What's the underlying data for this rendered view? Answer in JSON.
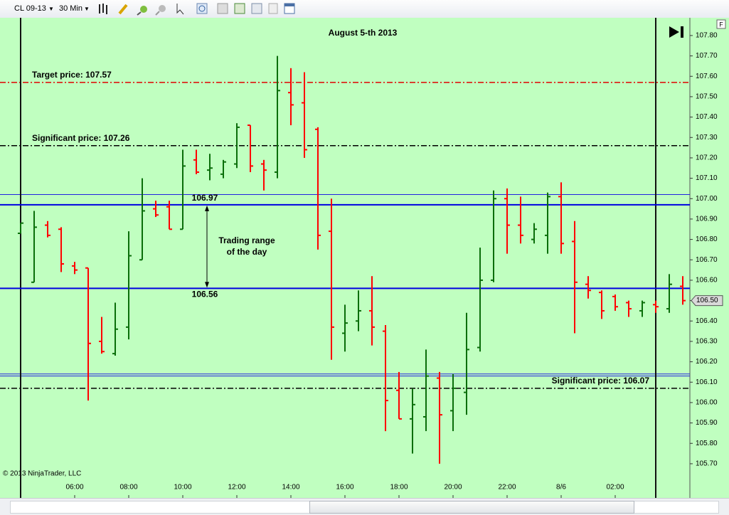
{
  "toolbar": {
    "instrument": "CL 09-13",
    "interval": "30 Min"
  },
  "chart_data": {
    "type": "ohlc",
    "title": "August 5-th 2013",
    "copyright": "© 2013 NinjaTrader, LLC",
    "panel_button": "F",
    "categories": [
      null,
      null,
      null,
      null,
      "06:00",
      null,
      null,
      null,
      "08:00",
      null,
      null,
      null,
      "10:00",
      null,
      null,
      null,
      "12:00",
      null,
      null,
      null,
      "14:00",
      null,
      null,
      null,
      "16:00",
      null,
      null,
      null,
      "18:00",
      null,
      null,
      null,
      "20:00",
      null,
      null,
      null,
      "22:00",
      null,
      null,
      null,
      "8/6",
      null,
      null,
      null,
      "02:00",
      null,
      null,
      null,
      null,
      null
    ],
    "open": [
      106.83,
      106.59,
      106.87,
      106.85,
      106.67,
      106.66,
      106.3,
      106.24,
      106.37,
      106.7,
      106.95,
      106.96,
      106.85,
      107.19,
      107.14,
      107.12,
      107.17,
      107.36,
      107.17,
      107.13,
      107.52,
      107.47,
      107.34,
      106.84,
      106.34,
      106.4,
      106.45,
      106.35,
      106.06,
      105.92,
      105.93,
      106.12,
      105.96,
      106.05,
      106.27,
      106.6,
      107.0,
      106.87,
      106.8,
      106.82,
      107.01,
      106.79,
      106.58,
      106.54,
      106.52,
      106.49,
      106.45,
      106.48,
      106.46,
      106.57
    ],
    "high": [
      106.88,
      106.94,
      106.89,
      106.86,
      106.69,
      106.66,
      106.42,
      106.49,
      106.84,
      107.1,
      106.99,
      106.99,
      107.24,
      107.24,
      107.22,
      107.19,
      107.37,
      107.36,
      107.19,
      107.7,
      107.64,
      107.62,
      107.35,
      107.0,
      106.48,
      106.55,
      106.62,
      106.38,
      106.15,
      106.07,
      106.26,
      106.15,
      106.14,
      106.44,
      106.76,
      107.04,
      107.05,
      107.01,
      106.88,
      107.03,
      107.08,
      106.89,
      106.62,
      106.55,
      106.53,
      106.5,
      106.5,
      106.5,
      106.63,
      106.62
    ],
    "low": [
      106.83,
      106.59,
      106.81,
      106.64,
      106.63,
      106.01,
      106.24,
      106.23,
      106.31,
      106.7,
      106.91,
      106.85,
      106.85,
      107.12,
      107.09,
      107.1,
      107.15,
      107.13,
      107.04,
      107.1,
      107.36,
      107.2,
      106.75,
      106.21,
      106.25,
      106.35,
      106.28,
      105.86,
      105.92,
      105.75,
      105.86,
      105.7,
      105.86,
      105.94,
      106.25,
      106.59,
      106.73,
      106.78,
      106.78,
      106.73,
      106.73,
      106.34,
      106.51,
      106.41,
      106.45,
      106.42,
      106.42,
      106.44,
      106.44,
      106.48
    ],
    "close": [
      106.88,
      106.86,
      106.82,
      106.68,
      106.65,
      106.29,
      106.25,
      106.36,
      106.72,
      106.94,
      106.92,
      106.85,
      107.16,
      107.13,
      107.15,
      107.18,
      107.35,
      107.16,
      107.14,
      107.53,
      107.46,
      107.24,
      106.82,
      106.37,
      106.39,
      106.45,
      106.37,
      106.01,
      105.92,
      105.99,
      106.13,
      105.94,
      106.07,
      106.26,
      106.6,
      107.0,
      106.87,
      106.82,
      106.85,
      107.01,
      106.78,
      106.59,
      106.55,
      106.45,
      106.47,
      106.46,
      106.49,
      106.47,
      106.58,
      106.5
    ],
    "up_color": "#0a6e0a",
    "down_color": "#ff0000",
    "session_breaks": [
      0,
      47
    ],
    "ylim": [
      105.63,
      107.88
    ],
    "yticks": [
      {
        "value": 105.7,
        "label": "105.70"
      },
      {
        "value": 105.8,
        "label": "105.80"
      },
      {
        "value": 105.9,
        "label": "105.90"
      },
      {
        "value": 106.0,
        "label": "106.00"
      },
      {
        "value": 106.1,
        "label": "106.10"
      },
      {
        "value": 106.2,
        "label": "106.20"
      },
      {
        "value": 106.3,
        "label": "106.30"
      },
      {
        "value": 106.4,
        "label": "106.40"
      },
      {
        "value": 106.5,
        "label": "106.50"
      },
      {
        "value": 106.6,
        "label": "106.60"
      },
      {
        "value": 106.7,
        "label": "106.70"
      },
      {
        "value": 106.8,
        "label": "106.80"
      },
      {
        "value": 106.9,
        "label": "106.90"
      },
      {
        "value": 107.0,
        "label": "107.00"
      },
      {
        "value": 107.1,
        "label": "107.10"
      },
      {
        "value": 107.2,
        "label": "107.20"
      },
      {
        "value": 107.3,
        "label": "107.30"
      },
      {
        "value": 107.4,
        "label": "107.40"
      },
      {
        "value": 107.5,
        "label": "107.50"
      },
      {
        "value": 107.6,
        "label": "107.60"
      },
      {
        "value": 107.7,
        "label": "107.70"
      },
      {
        "value": 107.8,
        "label": "107.80"
      }
    ],
    "lines": [
      {
        "value": 107.57,
        "label": "Target price: 107.57",
        "color": "#e00000",
        "style": "dashdot",
        "align": "left"
      },
      {
        "value": 107.26,
        "label": "Significant price: 107.26",
        "color": "#000000",
        "style": "dashdot",
        "align": "left"
      },
      {
        "value": 106.07,
        "label": "Significant price: 106.07",
        "color": "#000000",
        "style": "dashdot",
        "align": "right"
      },
      {
        "value": 107.02,
        "color": "#2020e0",
        "style": "solid"
      },
      {
        "value": 106.14,
        "color": "#2020e0",
        "style": "solid"
      },
      {
        "value": 106.13,
        "color": "#2020e0",
        "style": "solid"
      }
    ],
    "range": {
      "high": 106.97,
      "low": 106.56,
      "high_label": "106.97",
      "low_label": "106.56",
      "color": "#0000e0",
      "text": [
        "Trading range",
        "of the day"
      ]
    },
    "last": {
      "value": 106.5,
      "label": "106.50"
    }
  }
}
